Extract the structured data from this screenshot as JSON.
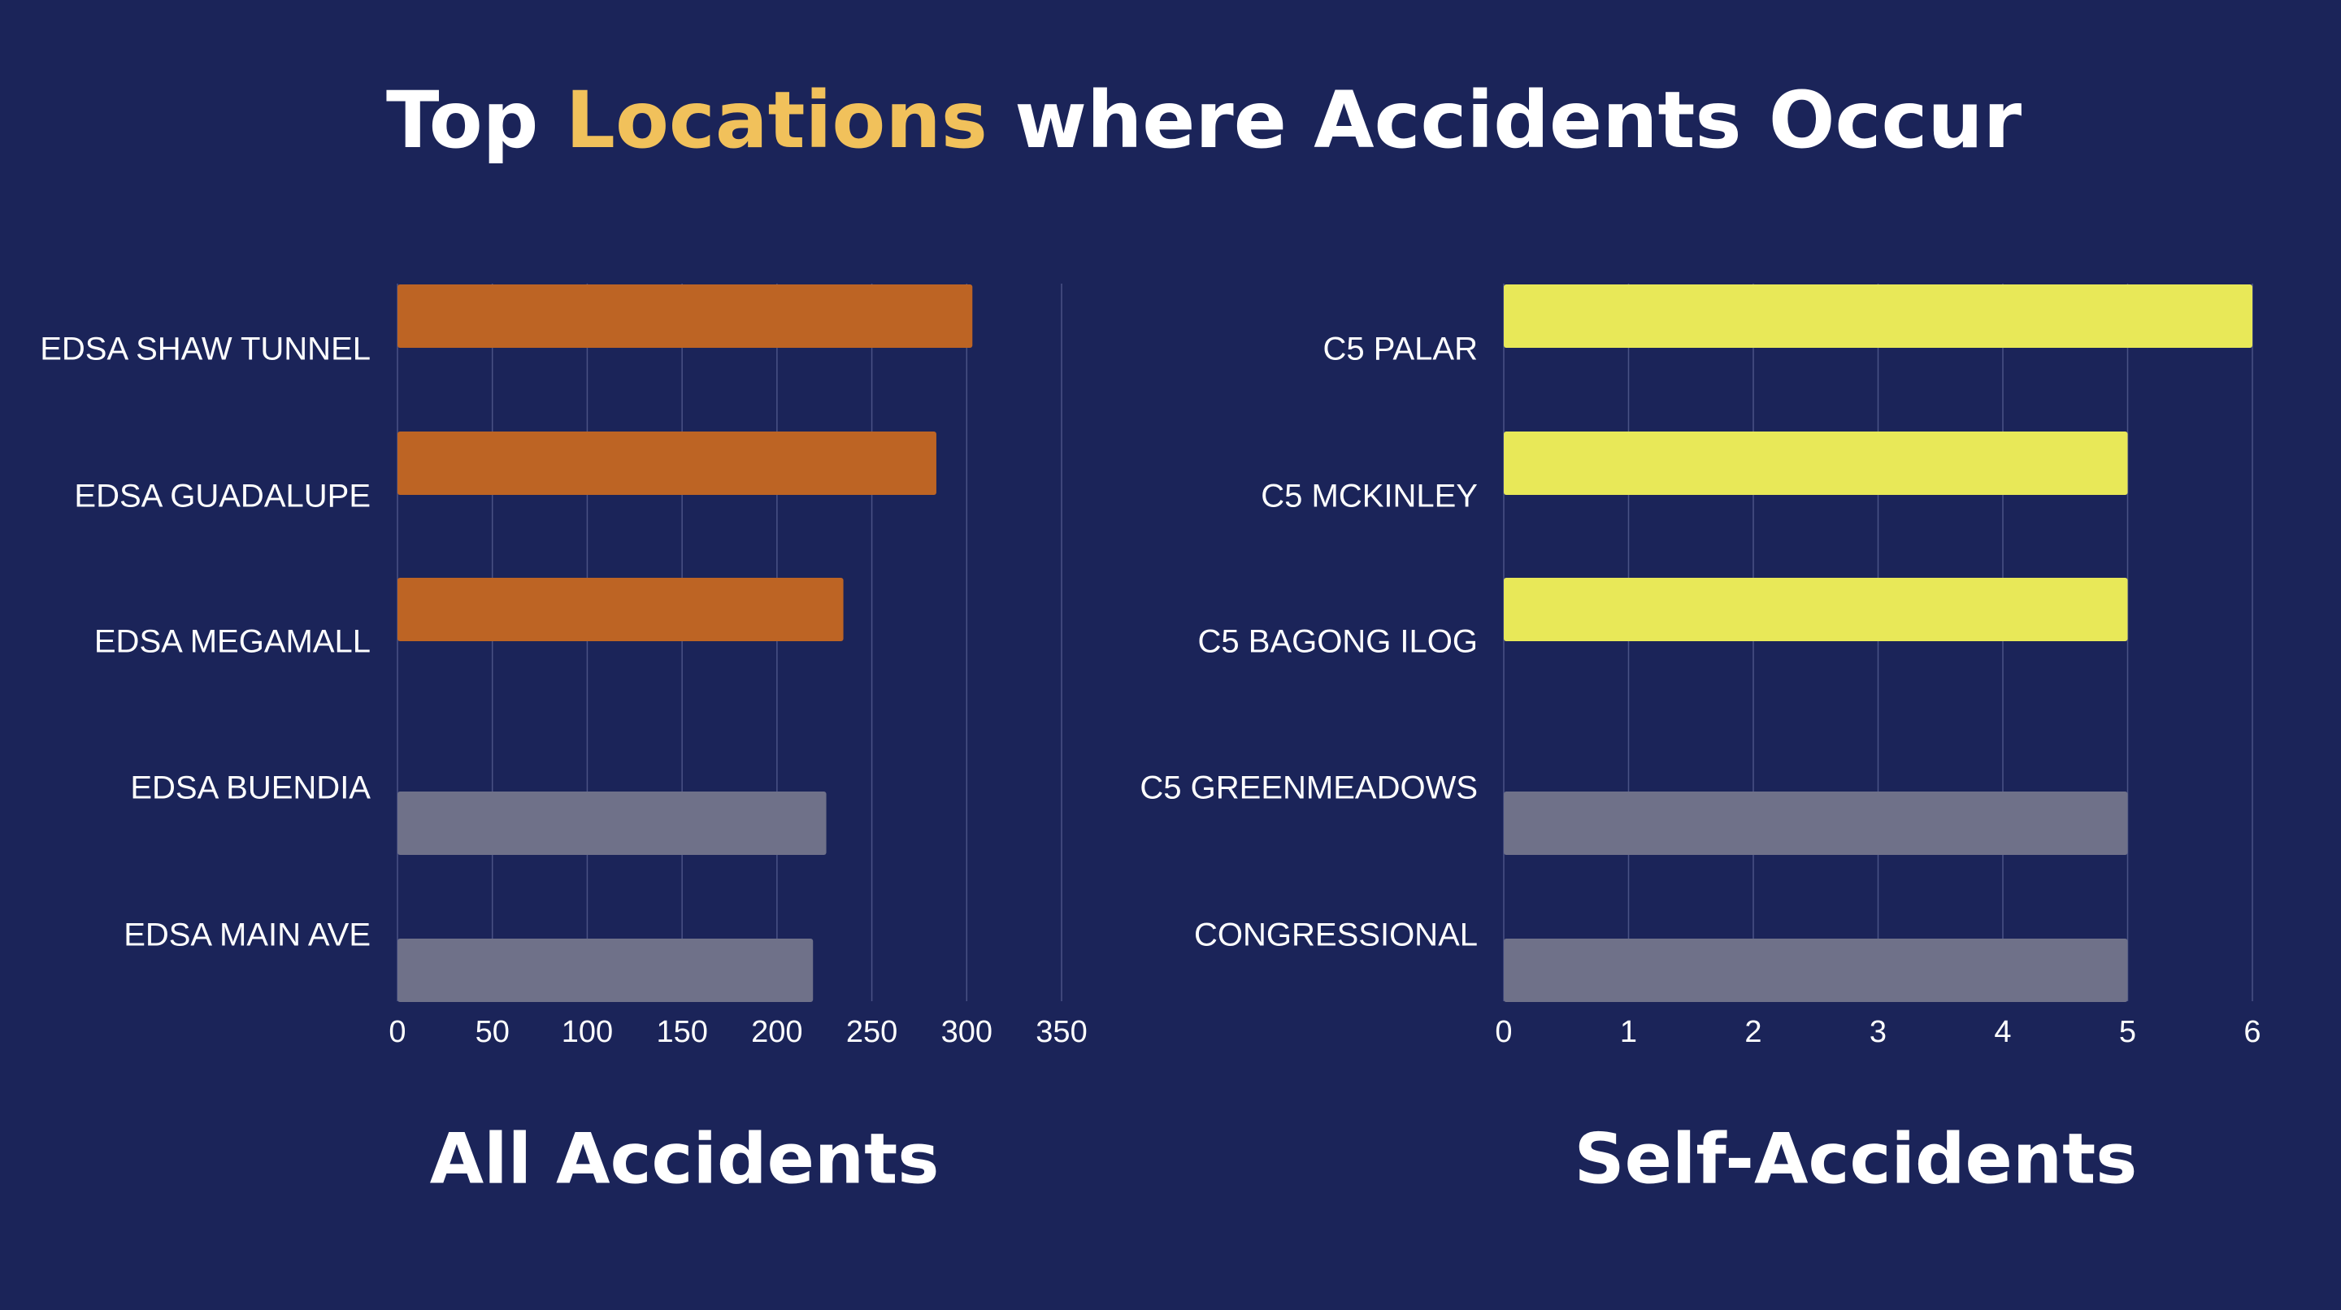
{
  "title": {
    "part1": "Top ",
    "accent": "Locations",
    "part2": " where Accidents Occur"
  },
  "colors": {
    "background": "#1b2459",
    "title_accent": "#f1c15b",
    "all_highlight": "#bd6424",
    "self_highlight": "#e8e858",
    "muted": "#6f7189"
  },
  "chart_data": [
    {
      "type": "bar",
      "orientation": "horizontal",
      "caption": "All Accidents",
      "categories": [
        "EDSA SHAW TUNNEL",
        "EDSA GUADALUPE",
        "EDSA MEGAMALL",
        "EDSA BUENDIA",
        "EDSA MAIN AVE"
      ],
      "values": [
        303,
        284,
        235,
        226,
        219
      ],
      "highlighted": [
        true,
        true,
        true,
        false,
        false
      ],
      "xlim": [
        0,
        350
      ],
      "xticks": [
        0,
        50,
        100,
        150,
        200,
        250,
        300,
        350
      ],
      "grid": true
    },
    {
      "type": "bar",
      "orientation": "horizontal",
      "caption": "Self-Accidents",
      "categories": [
        "C5 PALAR",
        "C5 MCKINLEY",
        "C5 BAGONG ILOG",
        "C5 GREENMEADOWS",
        "CONGRESSIONAL"
      ],
      "values": [
        6,
        5,
        5,
        5,
        5
      ],
      "highlighted": [
        true,
        true,
        true,
        false,
        false
      ],
      "xlim": [
        0,
        6
      ],
      "xticks": [
        0,
        1,
        2,
        3,
        4,
        5,
        6
      ],
      "grid": true
    }
  ]
}
